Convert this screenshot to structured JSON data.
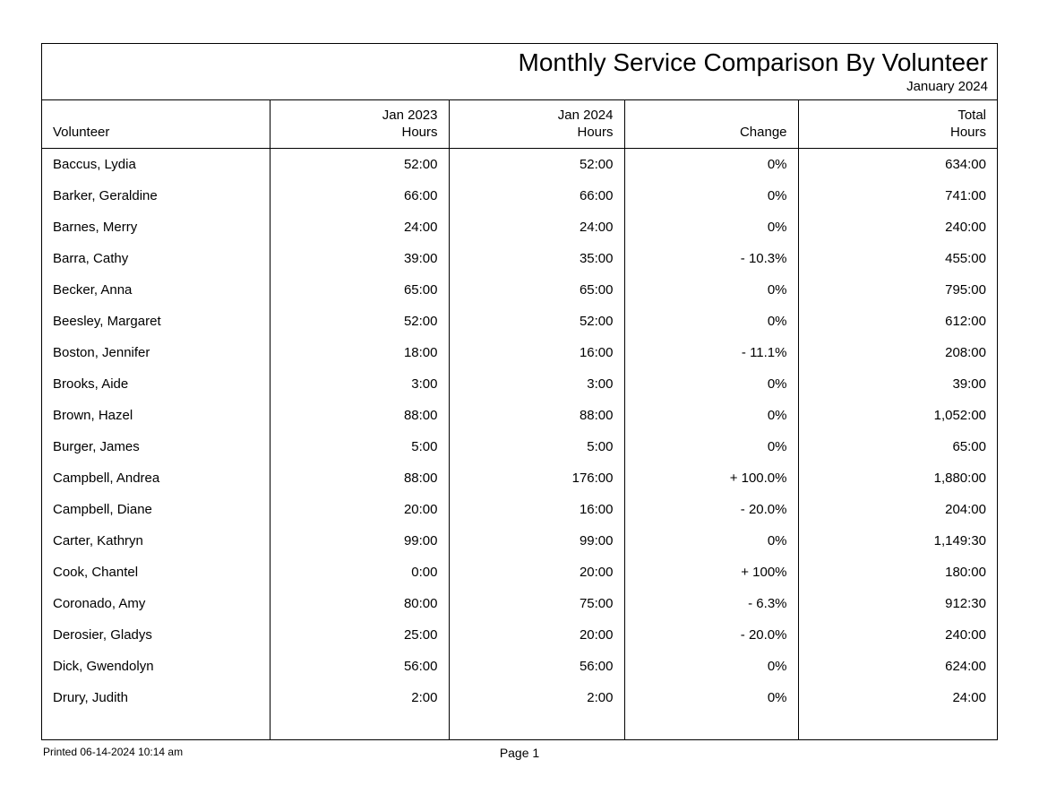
{
  "report": {
    "title": "Monthly Service Comparison By Volunteer",
    "subtitle": "January 2024",
    "columns": {
      "volunteer": "Volunteer",
      "prev_line1": "Jan 2023",
      "prev_line2": "Hours",
      "curr_line1": "Jan 2024",
      "curr_line2": "Hours",
      "change": "Change",
      "total_line1": "Total",
      "total_line2": "Hours"
    },
    "rows": [
      {
        "volunteer": "Baccus, Lydia",
        "prev": "52:00",
        "curr": "52:00",
        "change": "0%",
        "total": "634:00"
      },
      {
        "volunteer": "Barker, Geraldine",
        "prev": "66:00",
        "curr": "66:00",
        "change": "0%",
        "total": "741:00"
      },
      {
        "volunteer": "Barnes, Merry",
        "prev": "24:00",
        "curr": "24:00",
        "change": "0%",
        "total": "240:00"
      },
      {
        "volunteer": "Barra, Cathy",
        "prev": "39:00",
        "curr": "35:00",
        "change": "- 10.3%",
        "total": "455:00"
      },
      {
        "volunteer": "Becker, Anna",
        "prev": "65:00",
        "curr": "65:00",
        "change": "0%",
        "total": "795:00"
      },
      {
        "volunteer": "Beesley, Margaret",
        "prev": "52:00",
        "curr": "52:00",
        "change": "0%",
        "total": "612:00"
      },
      {
        "volunteer": "Boston, Jennifer",
        "prev": "18:00",
        "curr": "16:00",
        "change": "- 11.1%",
        "total": "208:00"
      },
      {
        "volunteer": "Brooks, Aide",
        "prev": "3:00",
        "curr": "3:00",
        "change": "0%",
        "total": "39:00"
      },
      {
        "volunteer": "Brown, Hazel",
        "prev": "88:00",
        "curr": "88:00",
        "change": "0%",
        "total": "1,052:00"
      },
      {
        "volunteer": "Burger, James",
        "prev": "5:00",
        "curr": "5:00",
        "change": "0%",
        "total": "65:00"
      },
      {
        "volunteer": "Campbell, Andrea",
        "prev": "88:00",
        "curr": "176:00",
        "change": "+ 100.0%",
        "total": "1,880:00"
      },
      {
        "volunteer": "Campbell, Diane",
        "prev": "20:00",
        "curr": "16:00",
        "change": "- 20.0%",
        "total": "204:00"
      },
      {
        "volunteer": "Carter, Kathryn",
        "prev": "99:00",
        "curr": "99:00",
        "change": "0%",
        "total": "1,149:30"
      },
      {
        "volunteer": "Cook, Chantel",
        "prev": "0:00",
        "curr": "20:00",
        "change": "+ 100%",
        "total": "180:00"
      },
      {
        "volunteer": "Coronado, Amy",
        "prev": "80:00",
        "curr": "75:00",
        "change": "- 6.3%",
        "total": "912:30"
      },
      {
        "volunteer": "Derosier, Gladys",
        "prev": "25:00",
        "curr": "20:00",
        "change": "- 20.0%",
        "total": "240:00"
      },
      {
        "volunteer": "Dick, Gwendolyn",
        "prev": "56:00",
        "curr": "56:00",
        "change": "0%",
        "total": "624:00"
      },
      {
        "volunteer": "Drury, Judith",
        "prev": "2:00",
        "curr": "2:00",
        "change": "0%",
        "total": "24:00"
      }
    ]
  },
  "footer": {
    "printed": "Printed 06-14-2024 10:14 am",
    "page": "Page 1"
  },
  "style": {
    "background_color": "#ffffff",
    "text_color": "#000000",
    "border_color": "#000000",
    "title_fontsize": 28,
    "body_fontsize": 15,
    "footer_fontsize": 12
  }
}
